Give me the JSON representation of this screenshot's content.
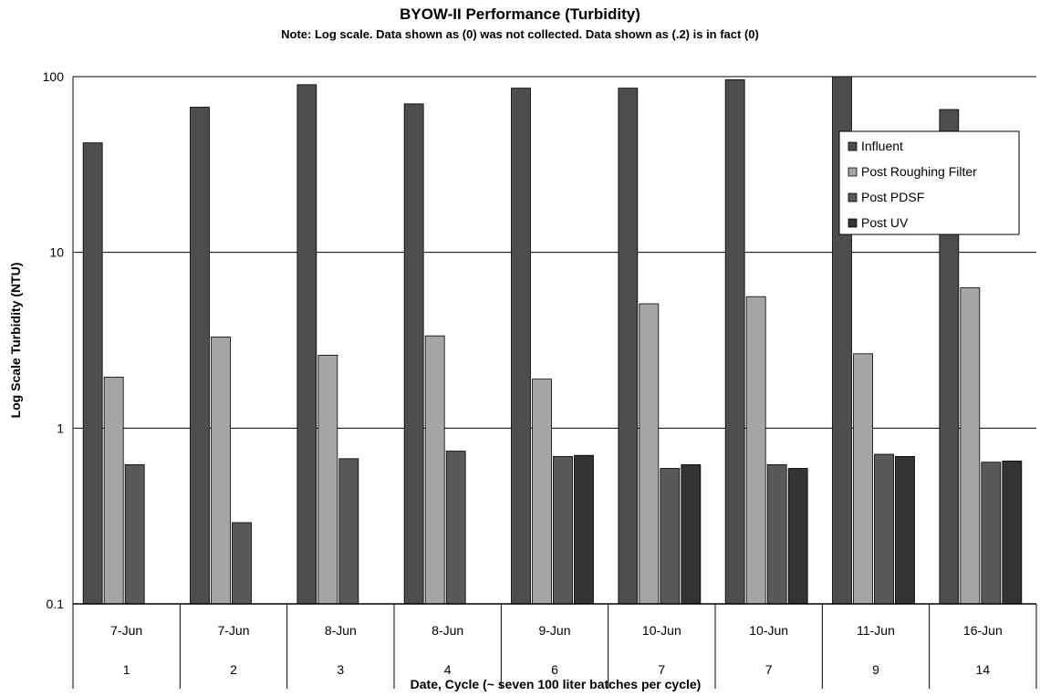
{
  "chart_data": {
    "type": "bar",
    "title": "BYOW-II Performance (Turbidity)",
    "subtitle": "Note: Log scale. Data shown as (0) was not collected. Data shown as (.2) is in fact (0)",
    "xlabel": "Date, Cycle (~ seven 100 liter batches per cycle)",
    "ylabel": "Log Scale Turbidity (NTU)",
    "yscale": "log",
    "ylim": [
      0.1,
      100
    ],
    "yticks": [
      "0.1",
      "1",
      "10",
      "100"
    ],
    "grid": true,
    "legend_position": "top-right",
    "categories": [
      {
        "date": "7-Jun",
        "cycle": "1"
      },
      {
        "date": "7-Jun",
        "cycle": "2"
      },
      {
        "date": "8-Jun",
        "cycle": "3"
      },
      {
        "date": "8-Jun",
        "cycle": "4"
      },
      {
        "date": "9-Jun",
        "cycle": "6"
      },
      {
        "date": "10-Jun",
        "cycle": "7"
      },
      {
        "date": "10-Jun",
        "cycle": "7"
      },
      {
        "date": "11-Jun",
        "cycle": "9"
      },
      {
        "date": "16-Jun",
        "cycle": "14"
      }
    ],
    "series": [
      {
        "name": "Influent",
        "color": "#4d4d4d",
        "values": [
          42,
          67,
          90,
          70,
          86,
          86,
          96,
          100,
          65
        ]
      },
      {
        "name": "Post Roughing Filter",
        "color": "#a6a6a6",
        "values": [
          1.95,
          3.3,
          2.6,
          3.35,
          1.9,
          5.1,
          5.6,
          2.65,
          6.3
        ]
      },
      {
        "name": "Post PDSF",
        "color": "#595959",
        "values": [
          0.62,
          0.29,
          0.67,
          0.74,
          0.69,
          0.59,
          0.62,
          0.71,
          0.64
        ]
      },
      {
        "name": "Post UV",
        "color": "#333333",
        "values": [
          null,
          null,
          null,
          null,
          0.7,
          0.62,
          0.59,
          0.69,
          0.65
        ]
      }
    ]
  }
}
